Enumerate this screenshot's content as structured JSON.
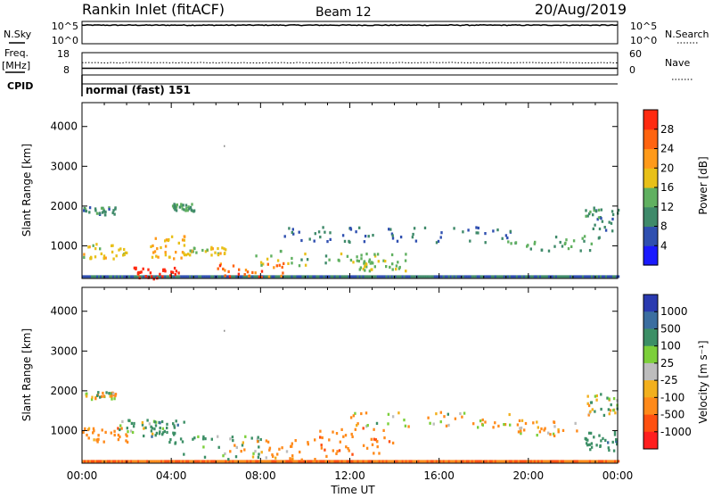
{
  "header": {
    "station": "Rankin Inlet (fitACF)",
    "beam": "Beam 12",
    "date": "20/Aug/2019"
  },
  "nsky_panel": {
    "left_label": "N.Sky",
    "right_label": "N.Search",
    "left_ticks": [
      "10^5",
      "10^0"
    ],
    "right_ticks": [
      "10^5",
      "10^0"
    ]
  },
  "freq_panel": {
    "left_label_1": "Freq.",
    "left_label_2": "[MHz]",
    "right_label": "Nave",
    "left_ticks": [
      "18",
      "8"
    ],
    "right_ticks": [
      "60",
      "0"
    ]
  },
  "cpid_panel": {
    "label": "CPID",
    "mode_text": "normal (fast) 151"
  },
  "axes": {
    "ylabel": "Slant Range [km]",
    "xlabel": "Time UT",
    "x_ticks": [
      "00:00",
      "04:00",
      "08:00",
      "12:00",
      "16:00",
      "20:00",
      "00:00"
    ],
    "y_ticks": [
      "1000",
      "2000",
      "3000",
      "4000"
    ]
  },
  "power_colorbar": {
    "title": "Power [dB]",
    "tick_labels": [
      "4",
      "8",
      "12",
      "16",
      "20",
      "24",
      "28"
    ],
    "colors": [
      "#1a1aff",
      "#2f4fb0",
      "#3f8a6a",
      "#60b060",
      "#e8c018",
      "#ff9a1a",
      "#ff6410",
      "#ff2a10"
    ]
  },
  "velocity_colorbar": {
    "title": "Velocity [m s⁻¹]",
    "tick_labels": [
      "1000",
      "500",
      "100",
      "25",
      "-25",
      "-100",
      "-500",
      "-1000"
    ],
    "colors": [
      "#2a3ab0",
      "#3b6ea0",
      "#3c8f66",
      "#7ccf3a",
      "#bdbdbd",
      "#f2b01e",
      "#ff8a1a",
      "#ff5010",
      "#ff1e1e"
    ]
  },
  "chart_data": [
    {
      "type": "line",
      "title": "N.Sky / N.Search",
      "x": [
        "00:00",
        "04:00",
        "08:00",
        "12:00",
        "16:00",
        "20:00",
        "00:00"
      ],
      "series": [
        {
          "name": "N.Sky",
          "values": [
            30000.0,
            30000.0,
            30000.0,
            30000.0,
            30000.0,
            30000.0,
            30000.0
          ]
        }
      ],
      "ylim": [
        1,
        100000
      ]
    },
    {
      "type": "line",
      "title": "Freq. / Nave",
      "x": [
        "00:00",
        "04:00",
        "08:00",
        "12:00",
        "16:00",
        "20:00",
        "00:00"
      ],
      "series": [
        {
          "name": "Freq.",
          "values": [
            10.5,
            10.5,
            10.5,
            10.5,
            10.5,
            10.5,
            10.5
          ]
        },
        {
          "name": "Nave",
          "values": [
            32,
            32,
            32,
            32,
            32,
            32,
            32
          ]
        }
      ],
      "ylim": [
        8,
        18
      ]
    },
    {
      "type": "heatmap",
      "title": "Power [dB]",
      "xlabel": "Time UT",
      "ylabel": "Slant Range [km]",
      "x_range_hours": [
        0,
        24
      ],
      "y_range_km": [
        180,
        4600
      ],
      "value_range": [
        0,
        30
      ],
      "regions": [
        {
          "t": [
            0.0,
            2.0
          ],
          "r": [
            700,
            1100
          ],
          "value": 18
        },
        {
          "t": [
            0.0,
            1.5
          ],
          "r": [
            1800,
            2000
          ],
          "value": 10
        },
        {
          "t": [
            2.3,
            4.5
          ],
          "r": [
            200,
            500
          ],
          "value": 30
        },
        {
          "t": [
            3.0,
            4.6
          ],
          "r": [
            700,
            1300
          ],
          "value": 20
        },
        {
          "t": [
            4.5,
            6.5
          ],
          "r": [
            800,
            1000
          ],
          "value": 18
        },
        {
          "t": [
            6.0,
            9.0
          ],
          "r": [
            200,
            600
          ],
          "value": 26
        },
        {
          "t": [
            7.5,
            14.5
          ],
          "r": [
            500,
            900
          ],
          "value": 14
        },
        {
          "t": [
            12.0,
            14.5
          ],
          "r": [
            400,
            700
          ],
          "value": 16
        },
        {
          "t": [
            9.0,
            19.5
          ],
          "r": [
            1100,
            1500
          ],
          "value": 8
        },
        {
          "t": [
            19.0,
            23.5
          ],
          "r": [
            900,
            1300
          ],
          "value": 12
        },
        {
          "t": [
            22.5,
            24.0
          ],
          "r": [
            1400,
            2000
          ],
          "value": 10
        },
        {
          "t": [
            4.0,
            5.0
          ],
          "r": [
            1900,
            2100
          ],
          "value": 12
        }
      ]
    },
    {
      "type": "heatmap",
      "title": "Velocity [m s⁻¹]",
      "xlabel": "Time UT",
      "ylabel": "Slant Range [km]",
      "x_range_hours": [
        0,
        24
      ],
      "y_range_km": [
        180,
        4600
      ],
      "value_range": [
        -1000,
        1000
      ],
      "regions": [
        {
          "t": [
            0.0,
            2.0
          ],
          "r": [
            700,
            1100
          ],
          "value": -300
        },
        {
          "t": [
            1.5,
            3.5
          ],
          "r": [
            900,
            1300
          ],
          "value": 150
        },
        {
          "t": [
            0.0,
            1.5
          ],
          "r": [
            1800,
            2000
          ],
          "value": 0
        },
        {
          "t": [
            3.0,
            4.6
          ],
          "r": [
            700,
            1300
          ],
          "value": 300
        },
        {
          "t": [
            4.5,
            8.0
          ],
          "r": [
            300,
            900
          ],
          "value": 200
        },
        {
          "t": [
            6.5,
            11.0
          ],
          "r": [
            300,
            800
          ],
          "value": -200
        },
        {
          "t": [
            10.0,
            14.0
          ],
          "r": [
            400,
            1100
          ],
          "value": -400
        },
        {
          "t": [
            12.0,
            19.5
          ],
          "r": [
            1100,
            1500
          ],
          "value": -100
        },
        {
          "t": [
            19.0,
            22.5
          ],
          "r": [
            900,
            1300
          ],
          "value": -150
        },
        {
          "t": [
            22.5,
            24.0
          ],
          "r": [
            500,
            1000
          ],
          "value": 300
        },
        {
          "t": [
            22.5,
            24.0
          ],
          "r": [
            1400,
            2000
          ],
          "value": 0
        }
      ]
    }
  ]
}
